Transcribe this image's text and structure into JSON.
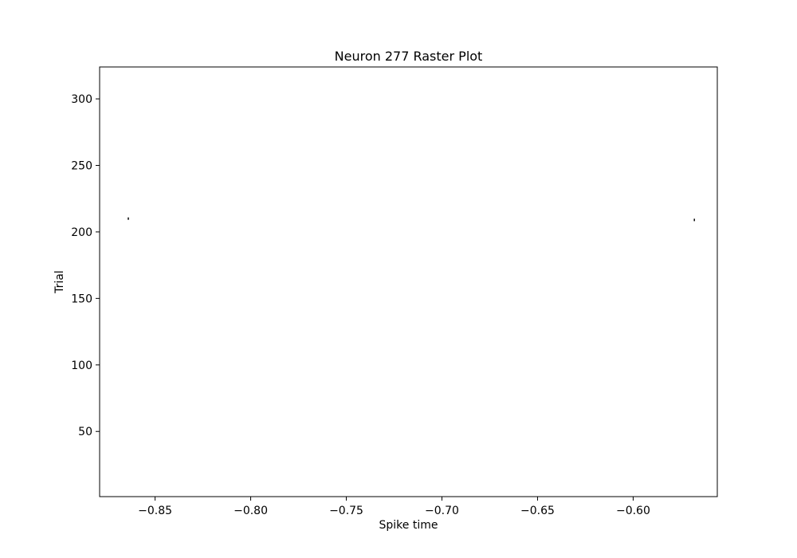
{
  "chart_data": {
    "type": "scatter",
    "title": "Neuron 277 Raster Plot",
    "xlabel": "Spike time",
    "ylabel": "Trial",
    "xlim": [
      -0.879,
      -0.556
    ],
    "ylim": [
      1,
      324
    ],
    "xticks": [
      -0.85,
      -0.8,
      -0.75,
      -0.7,
      -0.65,
      -0.6
    ],
    "xtick_labels": [
      "−0.85",
      "−0.80",
      "−0.75",
      "−0.70",
      "−0.65",
      "−0.60"
    ],
    "yticks": [
      50,
      100,
      150,
      200,
      250,
      300
    ],
    "ytick_labels": [
      "50",
      "100",
      "150",
      "200",
      "250",
      "300"
    ],
    "grid": false,
    "series": [
      {
        "marker": "vertical-tick",
        "color": "#000000",
        "points": [
          {
            "x": -0.864,
            "y": 210
          },
          {
            "x": -0.568,
            "y": 209
          }
        ]
      }
    ]
  }
}
